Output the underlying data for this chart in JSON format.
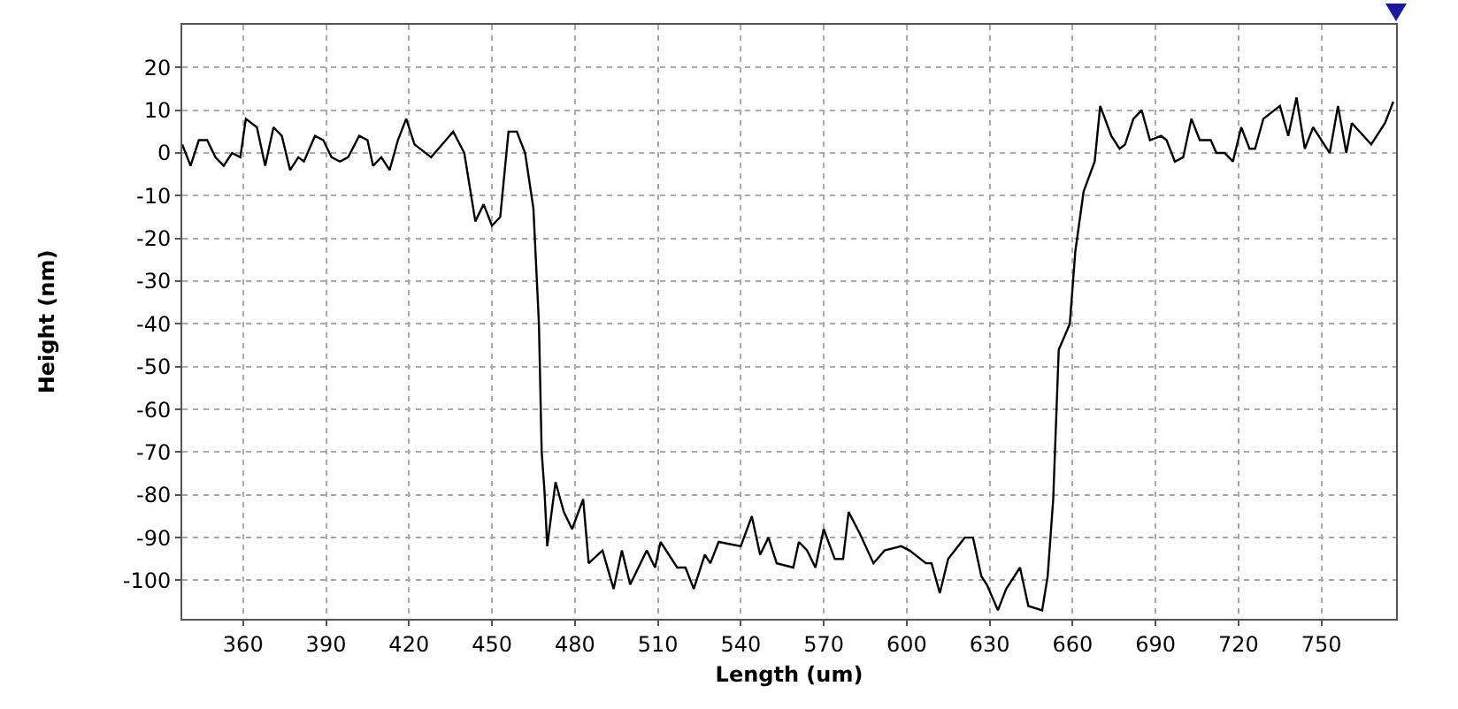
{
  "chart_data": {
    "type": "line",
    "xlabel": "Length (um)",
    "ylabel": "Height (nm)",
    "x": [
      338,
      341,
      344,
      347,
      350,
      353,
      356,
      359,
      361,
      365,
      368,
      371,
      374,
      377,
      380,
      382,
      386,
      389,
      392,
      395,
      398,
      402,
      405,
      407,
      410,
      413,
      416,
      419,
      422,
      428,
      436,
      440,
      444,
      447,
      450,
      453,
      456,
      459,
      462,
      465,
      467,
      468,
      469,
      470,
      473,
      476,
      479,
      483,
      485,
      490,
      494,
      497,
      500,
      506,
      509,
      511,
      517,
      520,
      523,
      527,
      529,
      532,
      540,
      544,
      547,
      550,
      553,
      559,
      561,
      564,
      567,
      570,
      574,
      577,
      579,
      583,
      588,
      592,
      598,
      601,
      607,
      609,
      612,
      615,
      621,
      624,
      627,
      629,
      633,
      636,
      641,
      644,
      649,
      651,
      653,
      655,
      659,
      661,
      664,
      668,
      670,
      674,
      677,
      679,
      682,
      685,
      688,
      692,
      694,
      697,
      700,
      703,
      706,
      710,
      712,
      715,
      718,
      721,
      724,
      726,
      729,
      735,
      738,
      741,
      744,
      747,
      753,
      756,
      759,
      761,
      768,
      773,
      776
    ],
    "series": [
      {
        "color": "#000000",
        "values": [
          2,
          -3,
          3,
          3,
          -1,
          -3,
          0,
          -1,
          8,
          6,
          -3,
          6,
          4,
          -4,
          -1,
          -2,
          4,
          3,
          -1,
          -2,
          -1,
          4,
          3,
          -3,
          -1,
          -4,
          3,
          8,
          2,
          -1,
          5,
          0,
          -16,
          -12,
          -17,
          -15,
          5,
          5,
          0,
          -13,
          -40,
          -70,
          -79,
          -92,
          -77,
          -84,
          -88,
          -81,
          -96,
          -93,
          -102,
          -93,
          -101,
          -93,
          -97,
          -91,
          -97,
          -97,
          -102,
          -94,
          -96,
          -91,
          -92,
          -85,
          -94,
          -90,
          -96,
          -97,
          -91,
          -93,
          -97,
          -88,
          -95,
          -95,
          -84,
          -89,
          -96,
          -93,
          -92,
          -93,
          -96,
          -96,
          -103,
          -95,
          -90,
          -90,
          -99,
          -101,
          -107,
          -102,
          -97,
          -106,
          -107,
          -99,
          -81,
          -46,
          -40,
          -23,
          -9,
          -2,
          11,
          4,
          1,
          2,
          8,
          10,
          3,
          4,
          3,
          -2,
          -1,
          8,
          3,
          3,
          0,
          0,
          -2,
          6,
          1,
          1,
          8,
          11,
          4,
          13,
          1,
          6,
          0,
          11,
          0,
          7,
          2,
          7,
          12
        ]
      }
    ],
    "xlim": [
      338,
      777
    ],
    "ylim": [
      -109,
      30
    ],
    "xticks": [
      360,
      390,
      420,
      450,
      480,
      510,
      540,
      570,
      600,
      630,
      660,
      690,
      720,
      750
    ],
    "yticks": [
      -100,
      -90,
      -80,
      -70,
      -60,
      -50,
      -40,
      -30,
      -20,
      -10,
      0,
      10,
      20
    ],
    "grid": true,
    "line_style": "solid",
    "marker": "none"
  }
}
